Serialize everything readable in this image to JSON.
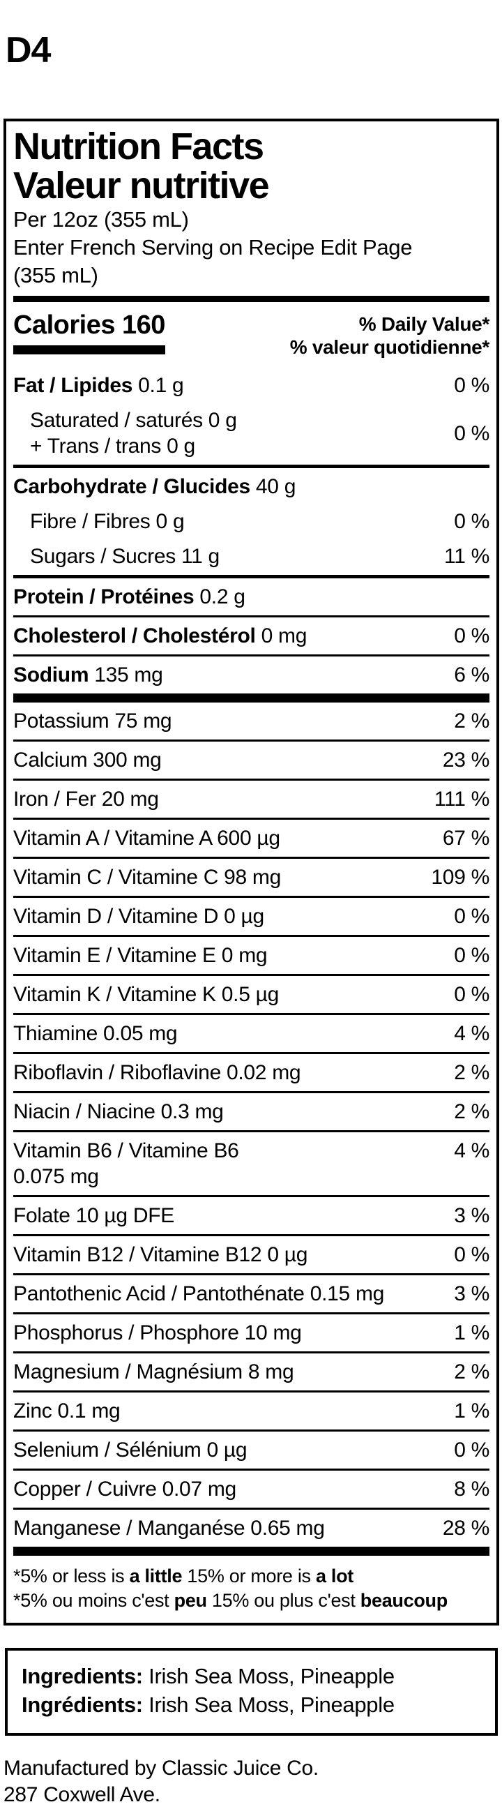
{
  "page": {
    "code": "D4"
  },
  "label": {
    "title_en": "Nutrition Facts",
    "title_fr": "Valeur nutritive",
    "serving_line1": "Per 12oz (355 mL)",
    "serving_line2": "Enter French Serving on Recipe Edit Page",
    "serving_line3": "(355 mL)",
    "calories_label": "Calories",
    "calories_value": "160",
    "dv_header_en": "% Daily Value*",
    "dv_header_fr": "% valeur quotidienne*",
    "nutrients": [
      {
        "id": "fat",
        "bold": "Fat / Lipides",
        "rest": "0.1 g",
        "dv": "0 %",
        "indent": false,
        "sep": "none",
        "valign": "center"
      },
      {
        "id": "saturated-trans",
        "bold": "",
        "rest": "Saturated / saturés 0 g\n+ Trans / trans 0 g",
        "dv": "0 %",
        "indent": true,
        "sep": "medium",
        "valign": "center"
      },
      {
        "id": "carbohydrate",
        "bold": "Carbohydrate / Glucides",
        "rest": "40 g",
        "dv": "",
        "indent": false,
        "sep": "none",
        "valign": "center"
      },
      {
        "id": "fibre",
        "bold": "",
        "rest": "Fibre / Fibres 0 g",
        "dv": "0 %",
        "indent": true,
        "sep": "none",
        "valign": "center"
      },
      {
        "id": "sugars",
        "bold": "",
        "rest": "Sugars / Sucres 11 g",
        "dv": "11 %",
        "indent": true,
        "sep": "medium",
        "valign": "center"
      },
      {
        "id": "protein",
        "bold": "Protein / Protéines",
        "rest": "0.2 g",
        "dv": "",
        "indent": false,
        "sep": "thin",
        "valign": "center"
      },
      {
        "id": "cholesterol",
        "bold": "Cholesterol / Cholestérol",
        "rest": "0 mg",
        "dv": "0 %",
        "indent": false,
        "sep": "thin",
        "valign": "center"
      },
      {
        "id": "sodium",
        "bold": "Sodium",
        "rest": "135 mg",
        "dv": "6 %",
        "indent": false,
        "sep": "thick",
        "valign": "center"
      },
      {
        "id": "potassium",
        "bold": "",
        "rest": "Potassium 75 mg",
        "dv": "2 %",
        "indent": false,
        "sep": "thin",
        "valign": "center"
      },
      {
        "id": "calcium",
        "bold": "",
        "rest": "Calcium 300 mg",
        "dv": "23 %",
        "indent": false,
        "sep": "thin",
        "valign": "center"
      },
      {
        "id": "iron",
        "bold": "",
        "rest": "Iron / Fer 20 mg",
        "dv": "111 %",
        "indent": false,
        "sep": "thin",
        "valign": "center"
      },
      {
        "id": "vitamin-a",
        "bold": "",
        "rest": "Vitamin A / Vitamine A 600 µg",
        "dv": "67 %",
        "indent": false,
        "sep": "thin",
        "valign": "center"
      },
      {
        "id": "vitamin-c",
        "bold": "",
        "rest": "Vitamin C / Vitamine C 98 mg",
        "dv": "109 %",
        "indent": false,
        "sep": "thin",
        "valign": "center"
      },
      {
        "id": "vitamin-d",
        "bold": "",
        "rest": "Vitamin D / Vitamine D 0 µg",
        "dv": "0 %",
        "indent": false,
        "sep": "thin",
        "valign": "center"
      },
      {
        "id": "vitamin-e",
        "bold": "",
        "rest": "Vitamin E / Vitamine E 0 mg",
        "dv": "0 %",
        "indent": false,
        "sep": "thin",
        "valign": "center"
      },
      {
        "id": "vitamin-k",
        "bold": "",
        "rest": "Vitamin K / Vitamine K 0.5 µg",
        "dv": "0 %",
        "indent": false,
        "sep": "thin",
        "valign": "center"
      },
      {
        "id": "thiamine",
        "bold": "",
        "rest": "Thiamine 0.05 mg",
        "dv": "4 %",
        "indent": false,
        "sep": "thin",
        "valign": "center"
      },
      {
        "id": "riboflavin",
        "bold": "",
        "rest": "Riboflavin / Riboflavine 0.02 mg",
        "dv": "2 %",
        "indent": false,
        "sep": "thin",
        "valign": "center"
      },
      {
        "id": "niacin",
        "bold": "",
        "rest": "Niacin / Niacine 0.3 mg",
        "dv": "2 %",
        "indent": false,
        "sep": "thin",
        "valign": "center"
      },
      {
        "id": "vitamin-b6",
        "bold": "",
        "rest": "Vitamin B6 / Vitamine B6\n0.075 mg",
        "dv": "4 %",
        "indent": false,
        "sep": "thin",
        "valign": "top"
      },
      {
        "id": "folate",
        "bold": "",
        "rest": "Folate 10 µg DFE",
        "dv": "3 %",
        "indent": false,
        "sep": "thin",
        "valign": "center"
      },
      {
        "id": "vitamin-b12",
        "bold": "",
        "rest": "Vitamin B12 / Vitamine B12 0 µg",
        "dv": "0 %",
        "indent": false,
        "sep": "thin",
        "valign": "center"
      },
      {
        "id": "pantothenic-acid",
        "bold": "",
        "rest": "Pantothenic Acid / Pantothénate 0.15 mg",
        "dv": "3 %",
        "indent": false,
        "sep": "thin",
        "valign": "center"
      },
      {
        "id": "phosphorus",
        "bold": "",
        "rest": "Phosphorus / Phosphore 10 mg",
        "dv": "1 %",
        "indent": false,
        "sep": "thin",
        "valign": "center"
      },
      {
        "id": "magnesium",
        "bold": "",
        "rest": "Magnesium / Magnésium 8 mg",
        "dv": "2 %",
        "indent": false,
        "sep": "thin",
        "valign": "center"
      },
      {
        "id": "zinc",
        "bold": "",
        "rest": "Zinc 0.1 mg",
        "dv": "1 %",
        "indent": false,
        "sep": "thin",
        "valign": "center"
      },
      {
        "id": "selenium",
        "bold": "",
        "rest": "Selenium / Sélénium 0 µg",
        "dv": "0 %",
        "indent": false,
        "sep": "thin",
        "valign": "center"
      },
      {
        "id": "copper",
        "bold": "",
        "rest": "Copper / Cuivre 0.07 mg",
        "dv": "8 %",
        "indent": false,
        "sep": "thin",
        "valign": "center"
      },
      {
        "id": "manganese",
        "bold": "",
        "rest": "Manganese / Manganése 0.65 mg",
        "dv": "28 %",
        "indent": false,
        "sep": "thick",
        "valign": "center"
      }
    ],
    "footnote_en": {
      "p1": "*5% or less is ",
      "b1": "a little",
      "p2": " 15% or more is ",
      "b2": "a lot"
    },
    "footnote_fr": {
      "p1": "*5% ou moins c'est ",
      "b1": "peu",
      "p2": " 15% ou plus c'est ",
      "b2": "beaucoup"
    }
  },
  "ingredients": {
    "label_en": "Ingredients:",
    "text_en": "Irish Sea Moss, Pineapple",
    "label_fr": "Ingrédients:",
    "text_fr": "Irish Sea Moss, Pineapple"
  },
  "manufacturer": {
    "line1": "Manufactured by Classic Juice Co.",
    "line2": "287 Coxwell Ave."
  }
}
